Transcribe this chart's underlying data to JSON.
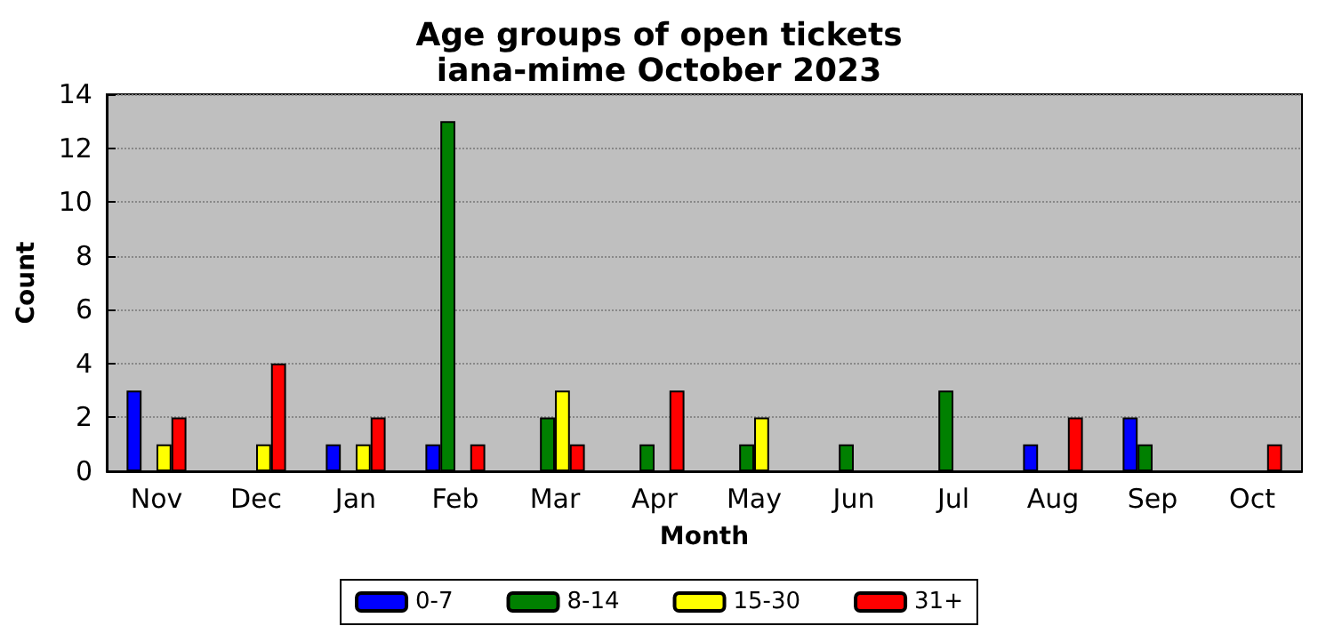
{
  "chart_data": {
    "type": "bar",
    "title": "Age groups of open tickets",
    "subtitle": "iana-mime October 2023",
    "xlabel": "Month",
    "ylabel": "Count",
    "categories": [
      "Nov",
      "Dec",
      "Jan",
      "Feb",
      "Mar",
      "Apr",
      "May",
      "Jun",
      "Jul",
      "Aug",
      "Sep",
      "Oct"
    ],
    "series": [
      {
        "name": "0-7",
        "color": "#0000ff",
        "values": [
          3,
          0,
          1,
          1,
          0,
          0,
          0,
          0,
          0,
          1,
          2,
          0
        ]
      },
      {
        "name": "8-14",
        "color": "#008000",
        "values": [
          0,
          0,
          0,
          13,
          2,
          1,
          1,
          1,
          3,
          0,
          1,
          0
        ]
      },
      {
        "name": "15-30",
        "color": "#ffff00",
        "values": [
          1,
          1,
          1,
          0,
          3,
          0,
          2,
          0,
          0,
          0,
          0,
          0
        ]
      },
      {
        "name": "31+",
        "color": "#ff0000",
        "values": [
          2,
          4,
          2,
          1,
          1,
          3,
          0,
          0,
          0,
          2,
          0,
          1
        ]
      }
    ],
    "ylim": [
      0,
      14
    ],
    "yticks": [
      0,
      2,
      4,
      6,
      8,
      10,
      12,
      14
    ],
    "grid": "y",
    "legend": "bottom"
  }
}
